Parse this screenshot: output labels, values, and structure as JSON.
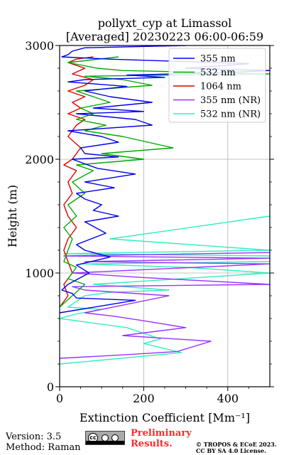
{
  "title_line1": "pollyxt_cyp at Limassol",
  "title_line2": "[Averaged] 20230223 06:00-06:59",
  "footer": {
    "version": "Version: 3.5",
    "method": "Method: Raman",
    "license_icon": "cc-by-sa-icon",
    "prelim_line1": "Preliminary",
    "prelim_line2": "Results.",
    "copyright_line1": "© TROPOS & ECoE 2023.",
    "copyright_line2": "CC BY SA 4.0 License."
  },
  "chart_data": {
    "type": "line",
    "xlabel": "Extinction Coefficient [Mm⁻¹]",
    "ylabel": "Height (m)",
    "xlim": [
      0,
      500
    ],
    "ylim": [
      0,
      3000
    ],
    "xticks": [
      0,
      200,
      400
    ],
    "yticks": [
      0,
      1000,
      2000,
      3000
    ],
    "grid": true,
    "legend_position": "top-right",
    "series": [
      {
        "name": "355 nm",
        "color": "#0000ee",
        "x": [
          0,
          180,
          40,
          30,
          5,
          20,
          70,
          40,
          120,
          60,
          40,
          110,
          60,
          140,
          80,
          100,
          60,
          40,
          130,
          60,
          180,
          90,
          30,
          140,
          60,
          50,
          140,
          100,
          20,
          220,
          180,
          40,
          200,
          80,
          220,
          120,
          60,
          160,
          20,
          60,
          250,
          160,
          380,
          500,
          300,
          450,
          120,
          5,
          20,
          30,
          60,
          300
        ],
        "y": [
          650,
          760,
          780,
          820,
          850,
          900,
          1000,
          1070,
          1140,
          1200,
          1250,
          1350,
          1450,
          1500,
          1550,
          1600,
          1650,
          1700,
          1750,
          1800,
          1870,
          1920,
          2000,
          2020,
          2050,
          2100,
          2150,
          2200,
          2250,
          2300,
          2350,
          2400,
          2420,
          2450,
          2500,
          2550,
          2600,
          2640,
          2680,
          2700,
          2720,
          2740,
          2760,
          2780,
          2800,
          2840,
          2880,
          2900,
          2920,
          2950,
          2980,
          3000
        ]
      },
      {
        "name": "532 nm",
        "color": "#00aa00",
        "x": [
          0,
          30,
          60,
          20,
          40,
          10,
          20,
          30,
          10,
          40,
          20,
          60,
          30,
          80,
          40,
          200,
          100,
          270,
          150,
          60,
          110,
          40,
          80,
          50,
          120,
          80,
          40,
          220,
          150,
          60,
          500,
          150,
          90,
          20,
          140
        ],
        "y": [
          700,
          800,
          900,
          950,
          1050,
          1100,
          1200,
          1300,
          1400,
          1500,
          1600,
          1700,
          1800,
          1900,
          1950,
          2000,
          2050,
          2100,
          2200,
          2250,
          2300,
          2350,
          2400,
          2450,
          2500,
          2550,
          2600,
          2650,
          2700,
          2730,
          2750,
          2780,
          2800,
          2850,
          2900
        ]
      },
      {
        "name": "1064 nm",
        "color": "#dd0000",
        "x": [
          0,
          20,
          10,
          30,
          20,
          10,
          20,
          40,
          20,
          10,
          30,
          20,
          40,
          10,
          30,
          50,
          20,
          40,
          60,
          20,
          50,
          30,
          60,
          20,
          60,
          80,
          30,
          60,
          20,
          40,
          80
        ],
        "y": [
          700,
          800,
          900,
          1000,
          1100,
          1200,
          1300,
          1400,
          1500,
          1600,
          1700,
          1800,
          1900,
          1950,
          2000,
          2100,
          2200,
          2300,
          2350,
          2400,
          2450,
          2500,
          2550,
          2600,
          2650,
          2700,
          2750,
          2800,
          2850,
          2880,
          2900
        ]
      },
      {
        "name": "355 nm (NR)",
        "color": "#9933ff",
        "x": [
          0,
          150,
          280,
          360,
          150,
          300,
          200,
          130,
          60,
          260,
          60,
          30,
          500,
          200,
          30,
          500,
          60,
          500,
          10,
          500
        ],
        "y": [
          250,
          280,
          310,
          400,
          450,
          520,
          580,
          620,
          650,
          800,
          850,
          880,
          900,
          960,
          1000,
          1080,
          1100,
          1130,
          1150,
          1180
        ]
      },
      {
        "name": "532 nm (NR)",
        "color": "#33eebb",
        "x": [
          0,
          290,
          200,
          240,
          160,
          0,
          40,
          100,
          20,
          60,
          120,
          260,
          80,
          500,
          300,
          50,
          500,
          500,
          10,
          500,
          120,
          500
        ],
        "y": [
          200,
          300,
          380,
          420,
          520,
          600,
          640,
          680,
          700,
          800,
          830,
          850,
          900,
          1000,
          1050,
          1080,
          1100,
          1150,
          1170,
          1200,
          1300,
          1500
        ]
      }
    ]
  }
}
